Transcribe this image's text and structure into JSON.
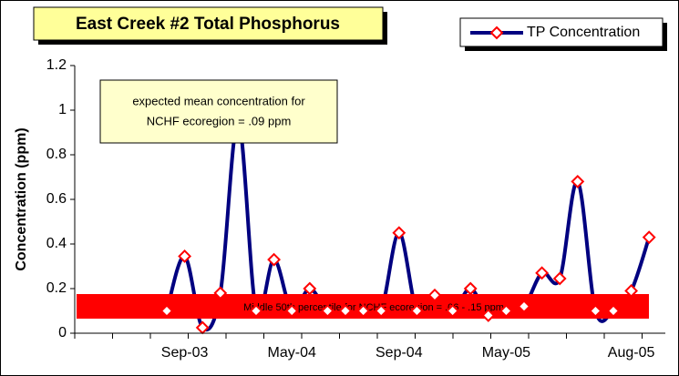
{
  "chart_data": {
    "type": "line",
    "title": "East Creek #2 Total Phosphorus",
    "y_label": "Concentration (ppm)",
    "categories": [
      null,
      "Sep-03",
      null,
      null,
      null,
      null,
      null,
      "May-04",
      null,
      null,
      null,
      null,
      null,
      "Sep-04",
      null,
      null,
      null,
      null,
      null,
      "May-05",
      null,
      null,
      null,
      null,
      null,
      null,
      "Aug-05",
      null
    ],
    "series": [
      {
        "name": "TP Concentration",
        "color": "#000080",
        "values": [
          0.1,
          0.345,
          0.025,
          0.18,
          0.95,
          0.1,
          0.33,
          0.1,
          0.2,
          0.1,
          0.1,
          0.1,
          0.1,
          0.45,
          0.1,
          0.17,
          0.1,
          0.2,
          0.08,
          0.1,
          0.12,
          0.27,
          0.245,
          0.68,
          0.1,
          0.1,
          0.19,
          0.43
        ]
      }
    ],
    "ylim": [
      0,
      1.2
    ],
    "yticks": [
      0,
      0.2,
      0.4,
      0.6,
      0.8,
      1,
      1.2
    ],
    "annotations": [
      "expected mean concentration for",
      "NCHF ecoregion = .09 ppm",
      "Middle 50th percentile for NCHF ecoregion = .06 - .15 ppm"
    ],
    "legend": "top-right",
    "marker_color": "#ff0000"
  }
}
